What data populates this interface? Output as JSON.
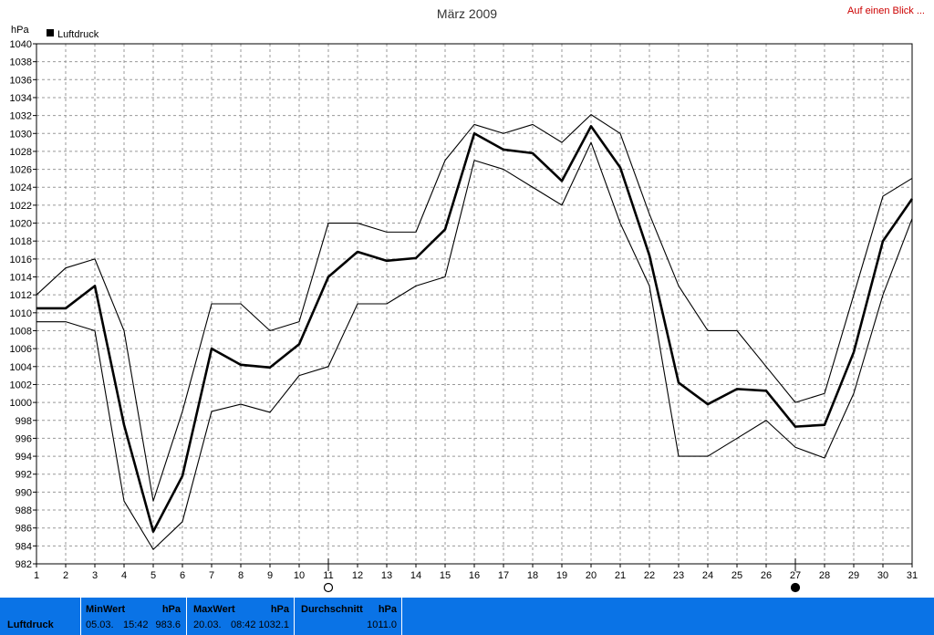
{
  "header": {
    "title": "März 2009",
    "link_label": "Auf einen Blick ..."
  },
  "chart_data": {
    "type": "line",
    "title": "März 2009",
    "ylabel": "hPa",
    "legend": [
      {
        "name": "Luftdruck",
        "color": "#000000"
      }
    ],
    "legend_position": "top-left",
    "grid": true,
    "ylim": [
      982,
      1040
    ],
    "ytick_step": 2,
    "x": [
      1,
      2,
      3,
      4,
      5,
      6,
      7,
      8,
      9,
      10,
      11,
      12,
      13,
      14,
      15,
      16,
      17,
      18,
      19,
      20,
      21,
      22,
      23,
      24,
      25,
      26,
      27,
      28,
      29,
      30,
      31
    ],
    "xlim": [
      1,
      31
    ],
    "series": [
      {
        "name": "Luftdruck",
        "role": "mean",
        "values": [
          1010.5,
          1010.5,
          1013,
          997.5,
          985.6,
          991.8,
          1006,
          1004.2,
          1003.9,
          1006.5,
          1014,
          1016.8,
          1015.8,
          1016.1,
          1019.3,
          1030,
          1028.2,
          1027.8,
          1024.7,
          1030.8,
          1026.2,
          1016.4,
          1002.2,
          999.8,
          1001.5,
          1001.3,
          997.3,
          997.5,
          1005.6,
          1018,
          1022.7
        ]
      },
      {
        "name": "",
        "role": "max",
        "values": [
          1012,
          1015,
          1016,
          1008,
          989,
          999,
          1011,
          1011,
          1008,
          1009,
          1020,
          1020,
          1019,
          1019,
          1027,
          1031,
          1030,
          1031,
          1029,
          1032.1,
          1030,
          1021,
          1013,
          1008,
          1008,
          1004,
          1000,
          1001,
          1012,
          1023,
          1025
        ]
      },
      {
        "name": "",
        "role": "min",
        "values": [
          1009,
          1009,
          1008,
          989,
          983.6,
          986.7,
          999,
          999.8,
          998.9,
          1003,
          1004,
          1011,
          1011,
          1013,
          1014,
          1027,
          1026,
          1024,
          1022,
          1029,
          1020,
          1013,
          994,
          994,
          996,
          998,
          995,
          993.8,
          1001,
          1012,
          1020.5
        ]
      }
    ],
    "markers": [
      {
        "x": 11,
        "symbol": "full-moon-icon"
      },
      {
        "x": 27,
        "symbol": "new-moon-icon"
      }
    ]
  },
  "footer": {
    "label": "Luftdruck",
    "min": {
      "title": "MinWert",
      "unit": "hPa",
      "date": "05.03.",
      "time": "15:42",
      "value": "983.6"
    },
    "max": {
      "title": "MaxWert",
      "unit": "hPa",
      "date": "20.03.",
      "time": "08:42",
      "value": "1032.1"
    },
    "avg": {
      "title": "Durchschnitt",
      "unit": "hPa",
      "value": "1011.0"
    }
  }
}
